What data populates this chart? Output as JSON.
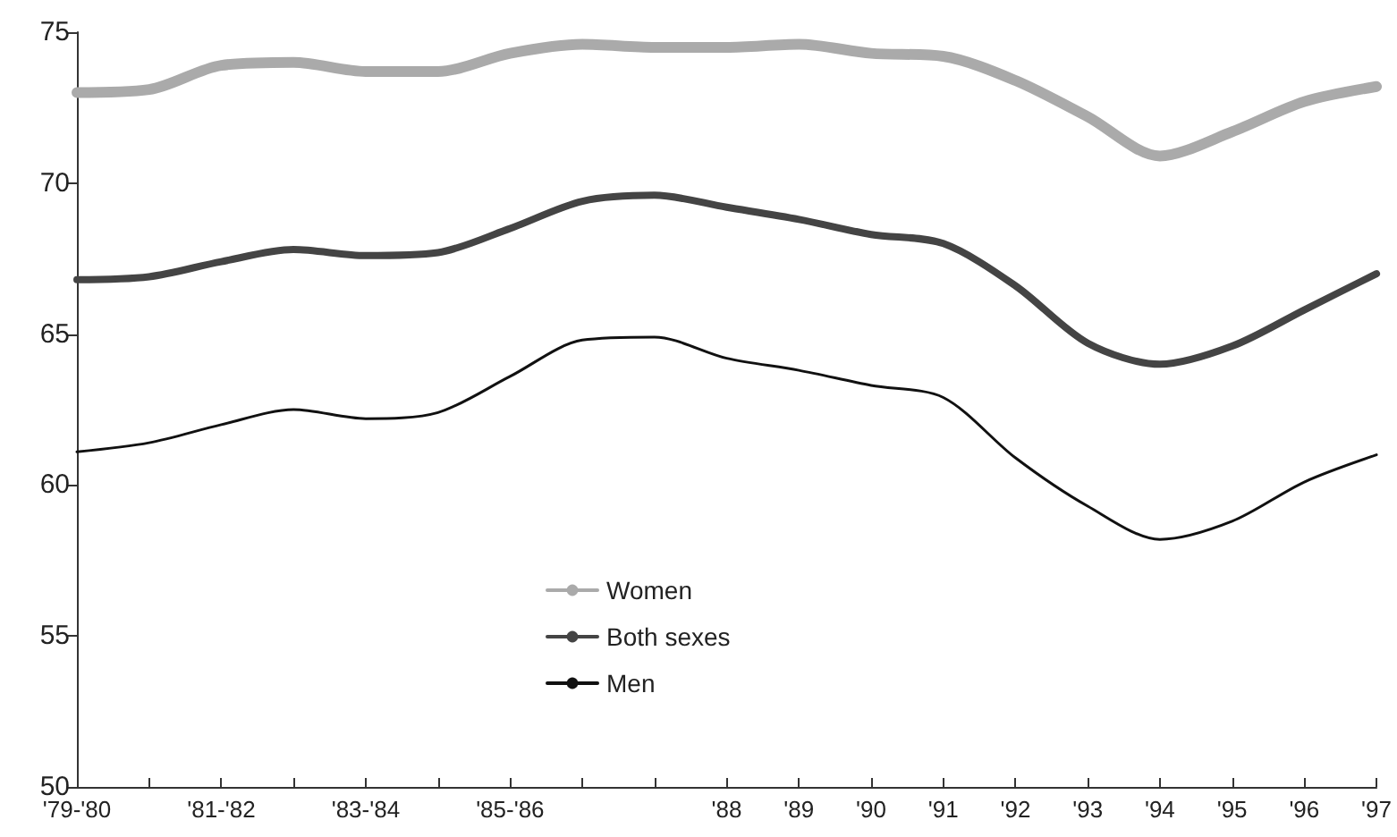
{
  "chart_data": {
    "type": "line",
    "categories": [
      "'79-'80",
      null,
      "'81-'82",
      null,
      "'83-'84",
      null,
      "'85-'86",
      null,
      null,
      "'88",
      "'89",
      "'90",
      "'91",
      "'92",
      "'93",
      "'94",
      "'95",
      "'96",
      "'97"
    ],
    "series": [
      {
        "name": "Women",
        "color": "#aaaaaa",
        "values": [
          73.0,
          73.1,
          73.9,
          74.0,
          73.7,
          73.7,
          74.3,
          74.6,
          74.5,
          74.5,
          74.6,
          74.3,
          74.2,
          73.4,
          72.2,
          70.9,
          71.7,
          72.7,
          73.2
        ]
      },
      {
        "name": "Both sexes",
        "color": "#444444",
        "values": [
          66.8,
          66.9,
          67.4,
          67.8,
          67.6,
          67.7,
          68.5,
          69.4,
          69.6,
          69.2,
          68.8,
          68.3,
          68.0,
          66.6,
          64.7,
          64.0,
          64.6,
          65.8,
          67.0
        ]
      },
      {
        "name": "Men",
        "color": "#111111",
        "values": [
          61.1,
          61.4,
          62.0,
          62.5,
          62.2,
          62.4,
          63.6,
          64.8,
          64.9,
          64.2,
          63.8,
          63.3,
          62.9,
          60.9,
          59.3,
          58.2,
          58.8,
          60.1,
          61.0
        ]
      }
    ],
    "ylim": [
      50,
      75
    ],
    "yticks": [
      50,
      55,
      60,
      65,
      70,
      75
    ],
    "grid": false,
    "legend": "bottom",
    "marker": "none",
    "line_style": "solid"
  }
}
